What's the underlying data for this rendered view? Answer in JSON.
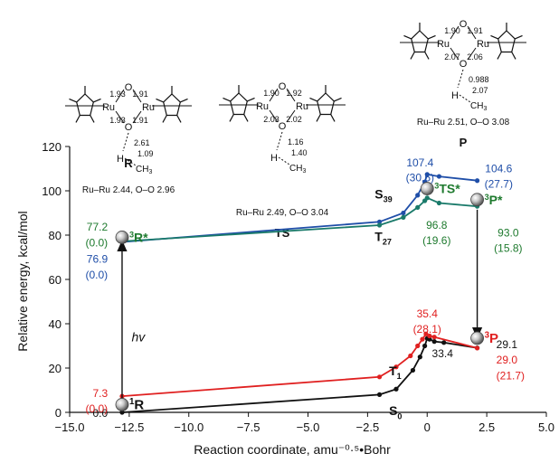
{
  "chart_data": {
    "type": "line",
    "xlabel": "Reaction coordinate, amu⁻⁰·⁵•Bohr",
    "ylabel": "Relative energy, kcal/mol",
    "xlim": [
      -15.0,
      5.0
    ],
    "ylim": [
      0,
      120
    ],
    "x_ticks": [
      "−15.0",
      "−12.5",
      "−10.0",
      "−7.5",
      "−5.0",
      "−2.5",
      "0",
      "2.5",
      "5.0"
    ],
    "y_ticks": [
      "0",
      "20",
      "40",
      "60",
      "80",
      "100",
      "120"
    ],
    "grid": false,
    "series": [
      {
        "name": "S0",
        "color": "#111111",
        "x": [
          -12.8,
          -2.0,
          -1.3,
          -0.6,
          -0.3,
          -0.1,
          0.0,
          0.1,
          0.3,
          0.7,
          2.1
        ],
        "y": [
          0.0,
          8.0,
          10.5,
          19.0,
          25.0,
          30.0,
          33.4,
          33.0,
          32.0,
          31.5,
          29.1
        ]
      },
      {
        "name": "T1",
        "color": "#e02020",
        "x": [
          -12.8,
          -2.0,
          -1.3,
          -0.7,
          -0.4,
          -0.2,
          -0.05,
          0.1,
          0.3,
          2.1
        ],
        "y": [
          7.3,
          16.0,
          20.5,
          25.5,
          30.0,
          33.0,
          35.4,
          34.5,
          34.0,
          29.0
        ]
      },
      {
        "name": "S39",
        "color": "#1f4ea8",
        "x": [
          -12.8,
          -2.0,
          -1.0,
          -0.4,
          -0.1,
          0.0,
          0.5,
          2.1
        ],
        "y": [
          76.9,
          86.0,
          90.0,
          98.0,
          104.0,
          107.4,
          106.5,
          104.6
        ]
      },
      {
        "name": "T27",
        "color": "#1a7a6a",
        "x": [
          -12.8,
          -2.0,
          -1.0,
          -0.4,
          -0.1,
          0.0,
          0.5,
          2.1
        ],
        "y": [
          77.2,
          84.5,
          88.0,
          92.5,
          95.5,
          96.8,
          94.5,
          93.0
        ]
      }
    ],
    "arrows": [
      {
        "label": "hv",
        "x": -12.8,
        "y_from": 3.0,
        "y_to": 75.5
      },
      {
        "x": 2.1,
        "y_from": 91.5,
        "y_to": 35.5
      }
    ],
    "annotations": {
      "S0_label": "S",
      "S0_sub": "0",
      "T1_label": "T",
      "T1_sub": "1",
      "S39_label": "S",
      "S39_sub": "39",
      "T27_label": "T",
      "T27_sub": "27",
      "hv": "hv",
      "R1_pre": "1",
      "R1": "R",
      "R3_pre": "3",
      "R3": "R*",
      "TS3_pre": "3",
      "TS3": "TS*",
      "P3star_pre": "3",
      "P3star": "P*",
      "P3_pre": "3",
      "P3": "P",
      "val_s0_r": "0.0",
      "val_t1_r": "7.3",
      "val_t1_r_rel": "(0.0)",
      "val_t27_r": "77.2",
      "val_t27_r_rel": "(0.0)",
      "val_s39_r": "76.9",
      "val_s39_r_rel": "(0.0)",
      "val_s39_ts": "107.4",
      "val_s39_ts_rel": "(30.5)",
      "val_s39_p": "104.6",
      "val_s39_p_rel": "(27.7)",
      "val_t27_ts": "96.8",
      "val_t27_ts_rel": "(19.6)",
      "val_t27_p": "93.0",
      "val_t27_p_rel": "(15.8)",
      "val_t1_ts": "35.4",
      "val_t1_ts_rel": "(28.1)",
      "val_s0_ts": "33.4",
      "val_s0_p": "29.1",
      "val_t1_p": "29.0",
      "val_t1_p_rel": "(21.7)"
    }
  },
  "structures": {
    "R": {
      "label": "R",
      "ru_ru": "Ru–Ru 2.44, O–O 2.96",
      "ru_left": "Ru",
      "ru_right": "Ru",
      "o_top": "O",
      "o_bot": "O",
      "d1": "1.93",
      "d2": "1.91",
      "d3": "1.93",
      "d4": "1.91",
      "oh": "2.61",
      "ch": "1.09",
      "h": "H",
      "ch3": "CH",
      "ch3_sub": "3"
    },
    "TS": {
      "label": "TS",
      "ru_ru": "Ru–Ru 2.49, O–O 3.04",
      "ru_left": "Ru",
      "ru_right": "Ru",
      "o_top": "O",
      "o_bot": "O",
      "d1": "1.90",
      "d2": "1.92",
      "d3": "2.03",
      "d4": "2.02",
      "oh": "1.16",
      "ch": "1.40",
      "h": "H",
      "ch3": "CH",
      "ch3_sub": "3"
    },
    "P": {
      "label": "P",
      "ru_ru": "Ru–Ru 2.51, O–O 3.08",
      "ru_left": "Ru",
      "ru_right": "Ru",
      "o_top": "O",
      "o_bot": "O",
      "d1": "1.90",
      "d2": "1.91",
      "d3": "2.07",
      "d4": "2.06",
      "oh": "0.988",
      "ch": "2.07",
      "h": "H",
      "ch3": "CH",
      "ch3_sub": "3"
    }
  },
  "colors": {
    "s0": "#111111",
    "t1": "#e02020",
    "s39": "#1f4ea8",
    "t27": "#1a7a6a",
    "state_label": "#1e7a2e"
  }
}
